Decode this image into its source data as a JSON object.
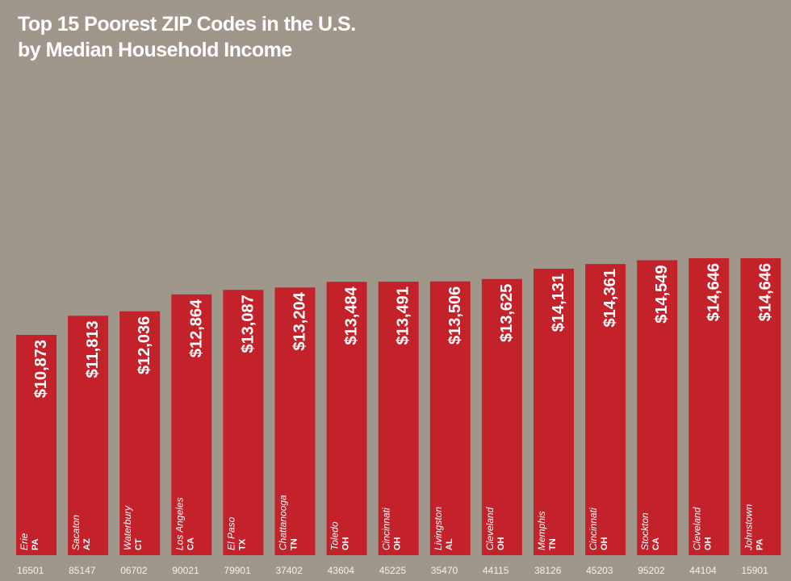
{
  "chart_data": {
    "type": "bar",
    "title": "Top 15 Poorest ZIP Codes in the U.S.",
    "subtitle": "by Median Household Income",
    "bar_color": "#c3222b",
    "background_color": "#a0978c",
    "bars": [
      {
        "zip": "16501",
        "city": "Erie",
        "state": "PA",
        "value": 10873,
        "label": "$10,873"
      },
      {
        "zip": "85147",
        "city": "Sacaton",
        "state": "AZ",
        "value": 11813,
        "label": "$11,813"
      },
      {
        "zip": "06702",
        "city": "Waterbury",
        "state": "CT",
        "value": 12036,
        "label": "$12,036"
      },
      {
        "zip": "90021",
        "city": "Los Angeles",
        "state": "CA",
        "value": 12864,
        "label": "$12,864"
      },
      {
        "zip": "79901",
        "city": "El Paso",
        "state": "TX",
        "value": 13087,
        "label": "$13,087"
      },
      {
        "zip": "37402",
        "city": "Chattanooga",
        "state": "TN",
        "value": 13204,
        "label": "$13,204"
      },
      {
        "zip": "43604",
        "city": "Toledo",
        "state": "OH",
        "value": 13484,
        "label": "$13,484"
      },
      {
        "zip": "45225",
        "city": "Cincinnati",
        "state": "OH",
        "value": 13491,
        "label": "$13,491"
      },
      {
        "zip": "35470",
        "city": "Livingston",
        "state": "AL",
        "value": 13506,
        "label": "$13,506"
      },
      {
        "zip": "44115",
        "city": "Cleveland",
        "state": "OH",
        "value": 13625,
        "label": "$13,625"
      },
      {
        "zip": "38126",
        "city": "Memphis",
        "state": "TN",
        "value": 14131,
        "label": "$14,131"
      },
      {
        "zip": "45203",
        "city": "Cincinnati",
        "state": "OH",
        "value": 14361,
        "label": "$14,361"
      },
      {
        "zip": "95202",
        "city": "Stockton",
        "state": "CA",
        "value": 14549,
        "label": "$14,549"
      },
      {
        "zip": "44104",
        "city": "Cleveland",
        "state": "OH",
        "value": 14646,
        "label": "$14,646"
      },
      {
        "zip": "15901",
        "city": "Johnstown",
        "state": "PA",
        "value": 14646,
        "label": "$14,646"
      }
    ]
  }
}
